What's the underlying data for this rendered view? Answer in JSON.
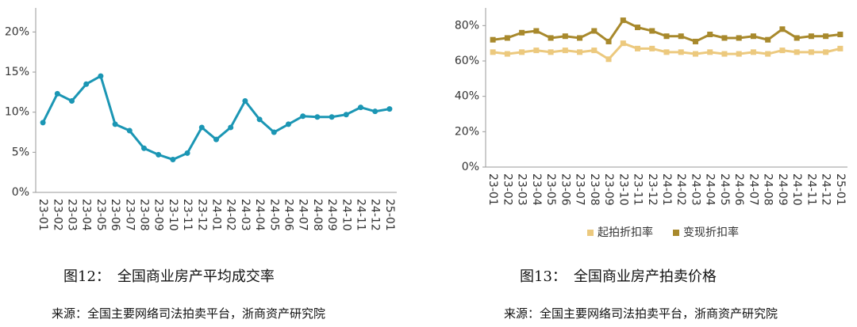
{
  "chart_data": [
    {
      "type": "line",
      "title": "图12：　全国商业房产平均成交率",
      "source": "来源：全国主要网络司法拍卖平台，浙商资产研究院",
      "categories": [
        "23-01",
        "23-02",
        "23-03",
        "23-04",
        "23-05",
        "23-06",
        "23-07",
        "23-08",
        "23-09",
        "23-10",
        "23-11",
        "23-12",
        "24-01",
        "24-02",
        "24-03",
        "24-04",
        "24-05",
        "24-06",
        "24-07",
        "24-08",
        "24-09",
        "24-10",
        "24-11",
        "24-12",
        "25-01"
      ],
      "series": [
        {
          "color": "#1b96b4",
          "values": [
            8.7,
            12.3,
            11.4,
            13.5,
            14.5,
            8.5,
            7.7,
            5.5,
            4.7,
            4.1,
            4.9,
            8.1,
            6.6,
            8.1,
            11.4,
            9.1,
            7.5,
            8.5,
            9.5,
            9.4,
            9.4,
            9.7,
            10.6,
            10.1,
            10.4
          ]
        }
      ],
      "ylim": [
        0,
        23
      ],
      "yticks": [
        {
          "value": 0,
          "label": "0%"
        },
        {
          "value": 5,
          "label": "5%"
        },
        {
          "value": 10,
          "label": "10%"
        },
        {
          "value": 15,
          "label": "15%"
        },
        {
          "value": 20,
          "label": "20%"
        }
      ],
      "grid": false,
      "markers": "circle"
    },
    {
      "type": "line",
      "title": "图13：　全国商业房产拍卖价格",
      "source": "来源：全国主要网络司法拍卖平台，浙商资产研究院",
      "categories": [
        "23-01",
        "23-02",
        "23-03",
        "23-04",
        "23-05",
        "23-06",
        "23-07",
        "23-08",
        "23-09",
        "23-10",
        "23-11",
        "23-12",
        "24-01",
        "24-02",
        "24-03",
        "24-04",
        "24-05",
        "24-06",
        "24-07",
        "24-08",
        "24-09",
        "24-10",
        "24-11",
        "24-12",
        "25-01"
      ],
      "series": [
        {
          "name": "起拍折扣率",
          "color": "#ecc97e",
          "values": [
            65,
            64,
            65,
            66,
            65,
            66,
            65,
            66,
            61,
            70,
            67,
            67,
            65,
            65,
            64,
            65,
            64,
            64,
            65,
            64,
            66,
            65,
            65,
            65,
            67
          ]
        },
        {
          "name": "变现折扣率",
          "color": "#a8892c",
          "values": [
            72,
            73,
            76,
            77,
            73,
            74,
            73,
            77,
            71,
            83,
            79,
            77,
            74,
            74,
            71,
            75,
            73,
            73,
            74,
            72,
            78,
            73,
            74,
            74,
            75
          ]
        }
      ],
      "ylim": [
        0,
        90
      ],
      "yticks": [
        {
          "value": 0,
          "label": "0%"
        },
        {
          "value": 20,
          "label": "20%"
        },
        {
          "value": 40,
          "label": "40%"
        },
        {
          "value": 60,
          "label": "60%"
        },
        {
          "value": 80,
          "label": "80%"
        }
      ],
      "grid": false,
      "markers": "square",
      "legend": "bottom"
    }
  ]
}
